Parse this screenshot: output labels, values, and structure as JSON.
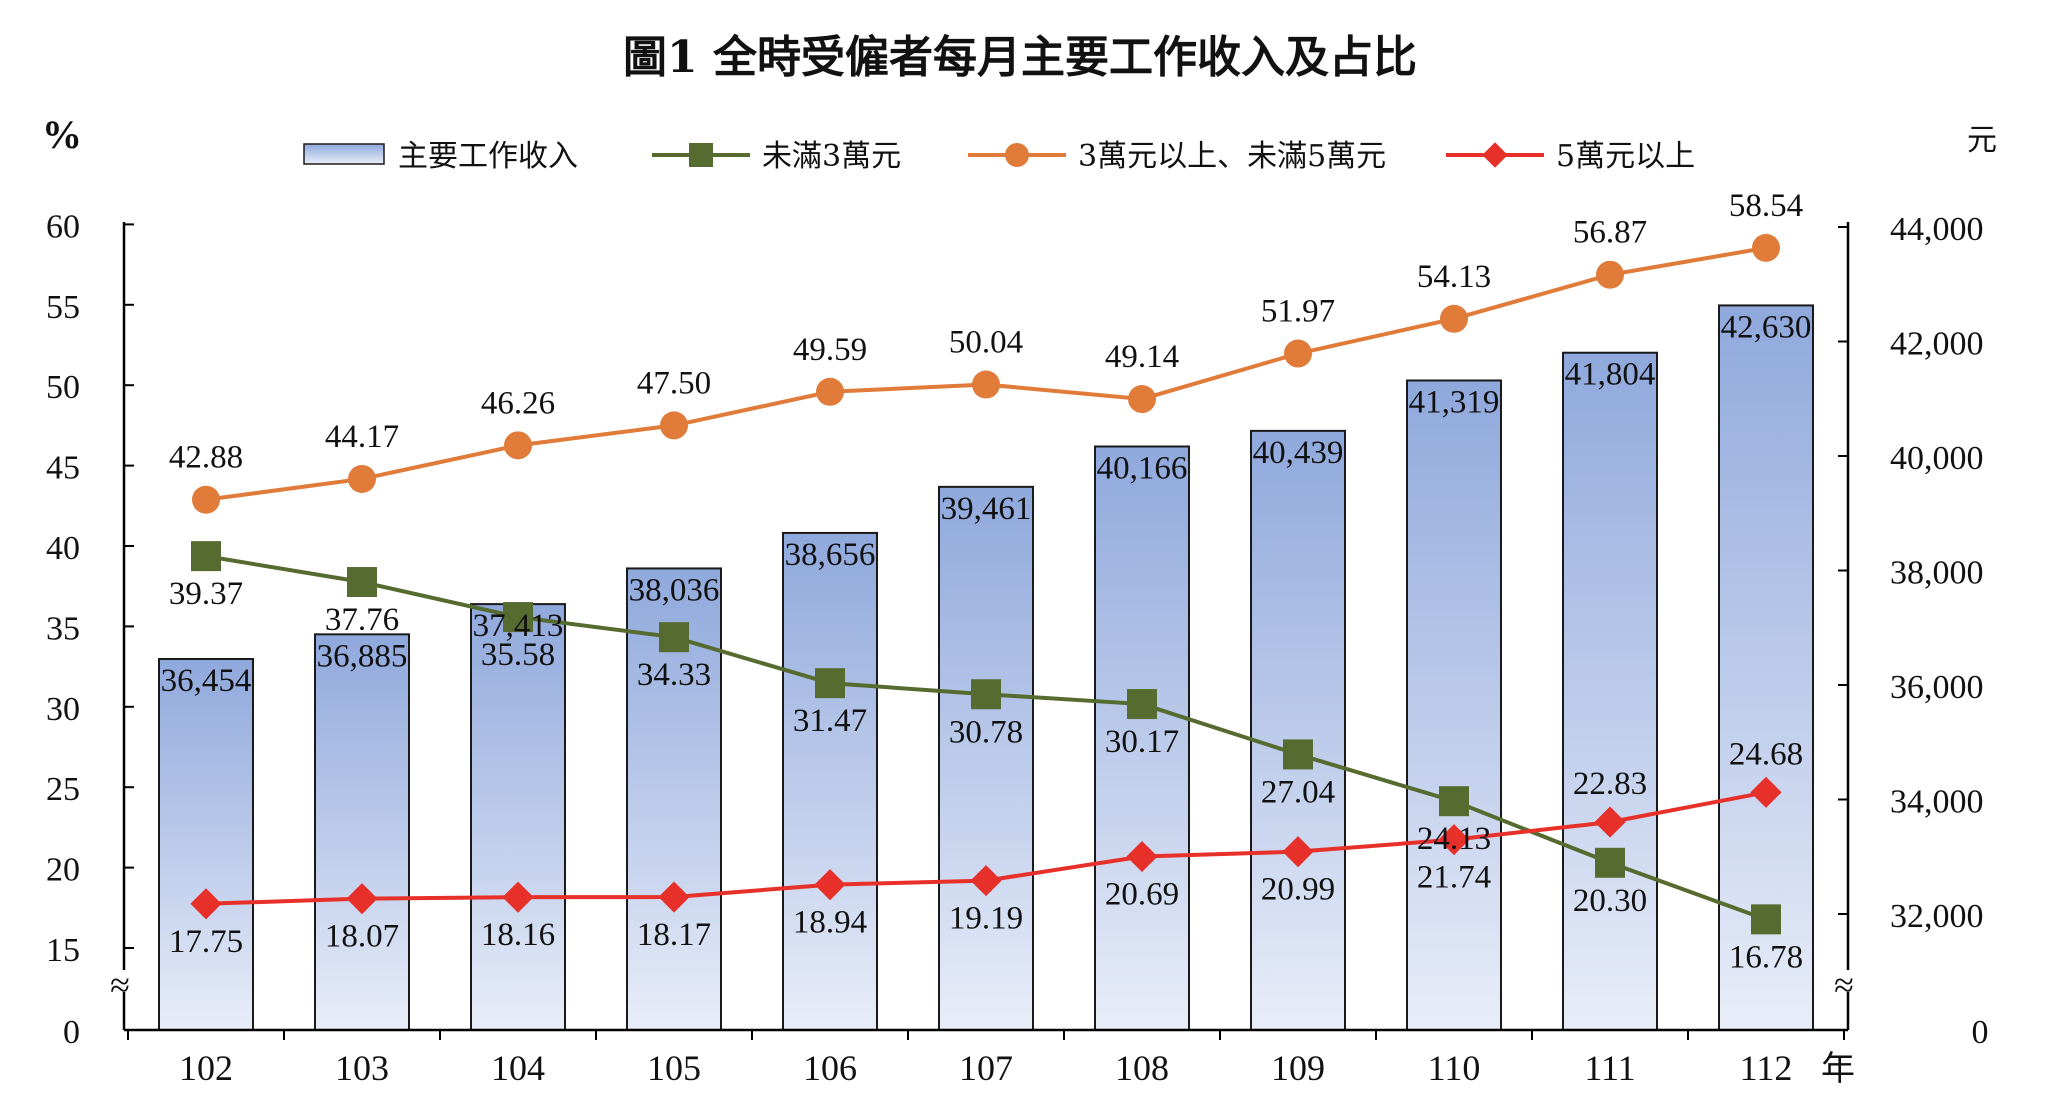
{
  "chart_data": {
    "type": "bar",
    "title": "圖1 全時受僱者每月主要工作收入及占比",
    "left_unit": "%",
    "right_unit": "元",
    "x_unit": "年",
    "categories": [
      "102",
      "103",
      "104",
      "105",
      "106",
      "107",
      "108",
      "109",
      "110",
      "111",
      "112"
    ],
    "left_axis": {
      "ticks": [
        "0",
        "15",
        "20",
        "25",
        "30",
        "35",
        "40",
        "45",
        "50",
        "55",
        "60"
      ],
      "break_symbol": "≈"
    },
    "right_axis": {
      "ticks": [
        "0",
        "32,000",
        "34,000",
        "36,000",
        "38,000",
        "40,000",
        "42,000",
        "44,000"
      ],
      "break_symbol": "≈"
    },
    "legend": {
      "position": "top",
      "bar_series_name": "主要工作收入",
      "line_series_names": [
        "未滿3萬元",
        "3萬元以上、未滿5萬元",
        "5萬元以上"
      ]
    },
    "bar_series": {
      "name": "主要工作收入",
      "axis": "right",
      "values": [
        36454,
        36885,
        37413,
        38036,
        38656,
        39461,
        40166,
        40439,
        41319,
        41804,
        42630
      ],
      "labels": [
        "36,454",
        "36,885",
        "37,413",
        "38,036",
        "38,656",
        "39,461",
        "40,166",
        "40,439",
        "41,319",
        "41,804",
        "42,630"
      ],
      "color_top": "#8fa8dc",
      "color_bottom": "#e8edf8",
      "border": "#1a1a1a"
    },
    "series": [
      {
        "name": "未滿3萬元",
        "axis": "left",
        "marker": "square",
        "color": "#556b2f",
        "values": [
          39.37,
          37.76,
          35.58,
          34.33,
          31.47,
          30.78,
          30.17,
          27.04,
          24.13,
          20.3,
          16.78
        ],
        "labels": [
          "39.37",
          "37.76",
          "35.58",
          "34.33",
          "31.47",
          "30.78",
          "30.17",
          "27.04",
          "24.13",
          "20.30",
          "16.78"
        ]
      },
      {
        "name": "3萬元以上、未滿5萬元",
        "axis": "left",
        "marker": "circle",
        "color": "#e07b39",
        "values": [
          42.88,
          44.17,
          46.26,
          47.5,
          49.59,
          50.04,
          49.14,
          51.97,
          54.13,
          56.87,
          58.54
        ],
        "labels": [
          "42.88",
          "44.17",
          "46.26",
          "47.50",
          "49.59",
          "50.04",
          "49.14",
          "51.97",
          "54.13",
          "56.87",
          "58.54"
        ]
      },
      {
        "name": "5萬元以上",
        "axis": "left",
        "marker": "diamond",
        "color": "#e8302a",
        "values": [
          17.75,
          18.07,
          18.16,
          18.17,
          18.94,
          19.19,
          20.69,
          20.99,
          21.74,
          22.83,
          24.68
        ],
        "labels": [
          "17.75",
          "18.07",
          "18.16",
          "18.17",
          "18.94",
          "19.19",
          "20.69",
          "20.99",
          "21.74",
          "22.83",
          "24.68"
        ]
      }
    ]
  }
}
